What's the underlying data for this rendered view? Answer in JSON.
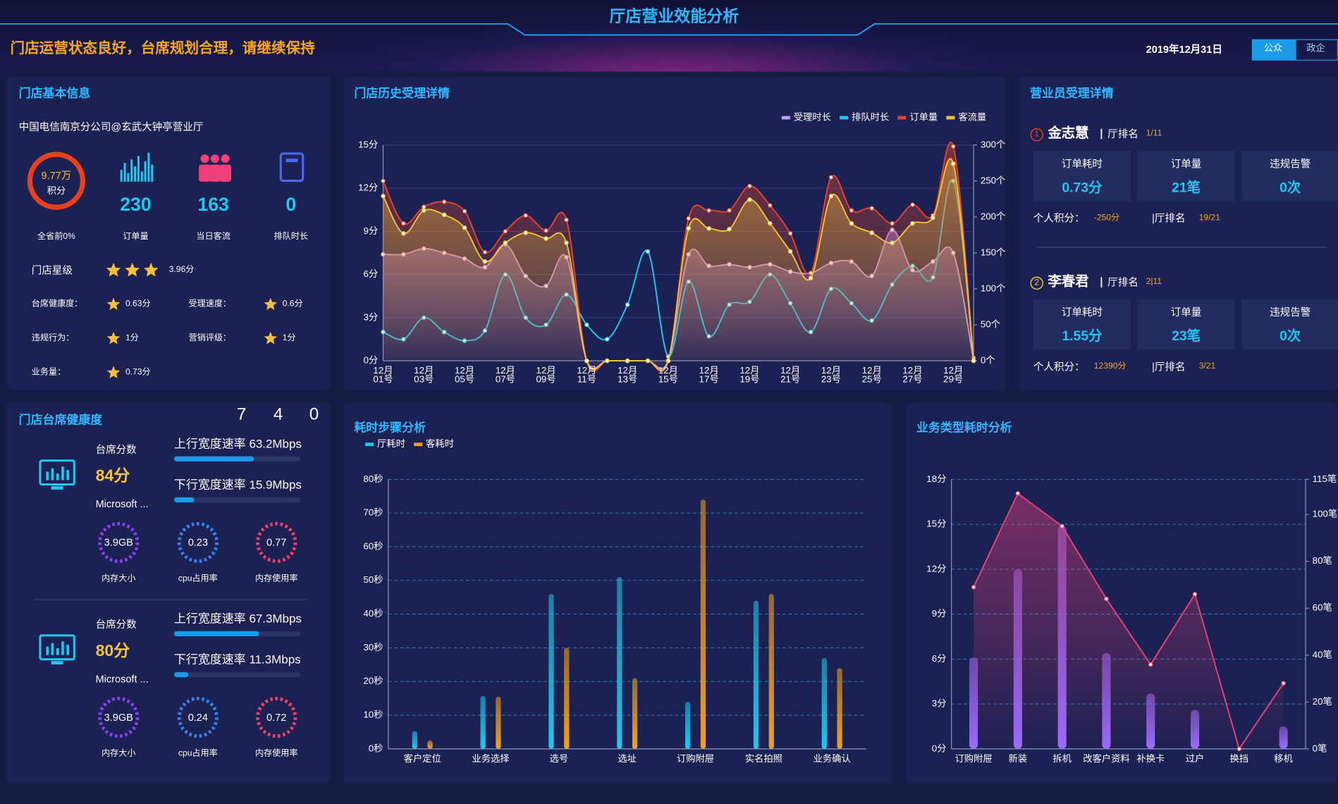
{
  "header": {
    "title": "厅店营业效能分析",
    "slogan": "门店运营状态良好，台席规划合理，请继续保持",
    "date": "2019年12月31日",
    "tabs": [
      "公众",
      "政企"
    ]
  },
  "store": {
    "title": "门店基本信息",
    "name": "中国电信南京分公司@玄武大钟亭营业厅",
    "score": "9.77万",
    "score_unit": "积分",
    "rank": "全省前0%",
    "stats": [
      {
        "value": 230,
        "label": "订单量"
      },
      {
        "value": 163,
        "label": "当日客流"
      },
      {
        "value": 0,
        "label": "排队时长"
      }
    ],
    "star_label": "门店星级",
    "star_score": "3.96分",
    "metrics": [
      {
        "label": "台席健康度：",
        "value": "0.63分"
      },
      {
        "label": "受理速度：",
        "value": "0.6分"
      },
      {
        "label": "违规行为：",
        "value": "1分"
      },
      {
        "label": "营销评级：",
        "value": "1分"
      },
      {
        "label": "业务量：",
        "value": "0.73分"
      }
    ]
  },
  "staff": {
    "title": "营业员受理详情",
    "members": [
      {
        "index": "1",
        "name": "金志慧",
        "rank_label": "厅排名",
        "rank": "1/11",
        "cards": [
          {
            "label": "订单耗时",
            "value": "0.73分"
          },
          {
            "label": "订单量",
            "value": "21笔"
          },
          {
            "label": "违规告警",
            "value": "0次"
          }
        ],
        "points_label": "个人积分：",
        "points": "-250分",
        "hall_rank_label": "|厅排名",
        "hall_rank": "19/21"
      },
      {
        "index": "2",
        "name": "李春君",
        "rank_label": "厅排名",
        "rank": "2|11",
        "cards": [
          {
            "label": "订单耗时",
            "value": "1.55分"
          },
          {
            "label": "订单量",
            "value": "23笔"
          },
          {
            "label": "违规告警",
            "value": "0次"
          }
        ],
        "points_label": "个人积分：",
        "points": "12390分",
        "hall_rank_label": "|厅排名",
        "hall_rank": "3/21"
      }
    ]
  },
  "health": {
    "title": "门店台席健康度",
    "digits": [
      "7",
      "4",
      "0"
    ],
    "terminals": [
      {
        "score_label": "台席分数",
        "score": "84分",
        "os": "Microsoft ...",
        "up": {
          "label": "上行宽度速率",
          "value": 63.2,
          "value_label": "63.2Mbps"
        },
        "down": {
          "label": "下行宽度速率",
          "value": 15.9,
          "value_label": "15.9Mbps"
        },
        "gauges": [
          {
            "value": "3.9GB",
            "label": "内存大小",
            "color": "#8b3ff0"
          },
          {
            "value": "0.23",
            "label": "cpu占用率",
            "color": "#3a7ff0"
          },
          {
            "value": "0.77",
            "label": "内存使用率",
            "color": "#f0406a"
          }
        ]
      },
      {
        "score_label": "台席分数",
        "score": "80分",
        "os": "Microsoft ...",
        "up": {
          "label": "上行宽度速率",
          "value": 67.3,
          "value_label": "67.3Mbps"
        },
        "down": {
          "label": "下行宽度速率",
          "value": 11.3,
          "value_label": "11.3Mbps"
        },
        "gauges": [
          {
            "value": "3.9GB",
            "label": "内存大小",
            "color": "#8b3ff0"
          },
          {
            "value": "0.24",
            "label": "cpu占用率",
            "color": "#3a7ff0"
          },
          {
            "value": "0.72",
            "label": "内存使用率",
            "color": "#f0406a"
          }
        ]
      }
    ]
  },
  "chart_data": [
    {
      "type": "line",
      "title": "门店历史受理详情",
      "smooth": true,
      "legend": "top-right",
      "grid": true,
      "categories": [
        "12月01号",
        null,
        "12月03号",
        null,
        "12月05号",
        null,
        "12月07号",
        null,
        "12月09号",
        null,
        "12月11号",
        null,
        "12月13号",
        null,
        "12月15号",
        null,
        "12月17号",
        null,
        "12月19号",
        null,
        "12月21号",
        null,
        "12月23号",
        null,
        "12月25号",
        null,
        "12月27号",
        null,
        "12月29号",
        null
      ],
      "series": [
        {
          "name": "受理时长",
          "color": "#c39bff",
          "area": true,
          "values": [
            7.4,
            7.4,
            7.8,
            7.5,
            7.1,
            6.5,
            8.1,
            5.9,
            5.2,
            7.2,
            0,
            0,
            0,
            0,
            0,
            7.4,
            6.6,
            6.7,
            6.5,
            6.7,
            6.2,
            6.1,
            6.8,
            6.9,
            5.9,
            9.1,
            6.3,
            6.9,
            7.5,
            0
          ]
        },
        {
          "name": "排队时长",
          "color": "#1ec8f0",
          "values": [
            2.0,
            1.5,
            3.0,
            2.0,
            1.4,
            2.1,
            6.0,
            3.0,
            2.5,
            4.6,
            2.5,
            1.5,
            3.9,
            7.6,
            0.3,
            5.5,
            1.7,
            3.9,
            4.1,
            6.0,
            4.0,
            2.0,
            5.0,
            4.0,
            2.8,
            5.3,
            6.6,
            5.8,
            12.5,
            0.2
          ]
        },
        {
          "name": "订单量",
          "color": "#e2452b",
          "axis": "y2",
          "area": true,
          "values": [
            250,
            191,
            214,
            221,
            208,
            151,
            180,
            202,
            181,
            196,
            0,
            0,
            0,
            0,
            0,
            198,
            209,
            209,
            243,
            216,
            177,
            122,
            255,
            209,
            212,
            191,
            217,
            202,
            298,
            4
          ]
        },
        {
          "name": "客流量",
          "color": "#f3c133",
          "axis": "y2",
          "area": true,
          "values": [
            229,
            177,
            209,
            203,
            185,
            138,
            164,
            178,
            170,
            164,
            0,
            0,
            0,
            0,
            0,
            184,
            184,
            183,
            224,
            191,
            152,
            115,
            229,
            191,
            178,
            164,
            191,
            199,
            274,
            0
          ]
        }
      ],
      "ylim": [
        0,
        15
      ],
      "yticks": [
        {
          "value": 0,
          "label": "0分"
        },
        {
          "value": 3,
          "label": "3分"
        },
        {
          "value": 6,
          "label": "6分"
        },
        {
          "value": 9,
          "label": "9分"
        },
        {
          "value": 12,
          "label": "12分"
        },
        {
          "value": 15,
          "label": "15分"
        }
      ],
      "y2lim": [
        0,
        300
      ],
      "y2ticks": [
        {
          "value": 0,
          "label": "0个"
        },
        {
          "value": 50,
          "label": "50个"
        },
        {
          "value": 100,
          "label": "100个"
        },
        {
          "value": 150,
          "label": "150个"
        },
        {
          "value": 200,
          "label": "200个"
        },
        {
          "value": 250,
          "label": "250个"
        },
        {
          "value": 300,
          "label": "300个"
        }
      ]
    },
    {
      "type": "bar",
      "title": "耗时步骤分析",
      "legend": "top-left",
      "grid": true,
      "categories": [
        "客户定位",
        "业务选择",
        "选号",
        "选址",
        "订购附屉",
        "实名拍照",
        "业务确认"
      ],
      "series": [
        {
          "name": "厅耗时",
          "color": "#1ec8f0",
          "values": [
            5.3,
            15.7,
            46,
            51,
            14,
            44,
            27
          ]
        },
        {
          "name": "客耗时",
          "color": "#f0a020",
          "values": [
            2.5,
            15.5,
            30,
            21,
            74,
            46,
            24
          ]
        }
      ],
      "ylim": [
        0,
        80
      ],
      "yticks": [
        {
          "value": 0,
          "label": "0秒"
        },
        {
          "value": 10,
          "label": "10秒"
        },
        {
          "value": 20,
          "label": "20秒"
        },
        {
          "value": 30,
          "label": "30秒"
        },
        {
          "value": 40,
          "label": "40秒"
        },
        {
          "value": 50,
          "label": "50秒"
        },
        {
          "value": 60,
          "label": "60秒"
        },
        {
          "value": 70,
          "label": "70秒"
        },
        {
          "value": 80,
          "label": "80秒"
        }
      ]
    },
    {
      "type": "combo",
      "title": "业务类型耗时分析",
      "grid": true,
      "categories": [
        "订购附屉",
        "新装",
        "拆机",
        "改客户资料",
        "补换卡",
        "过户",
        "换挡",
        "移机"
      ],
      "series": [
        {
          "type": "bar",
          "color": "#9b6bff",
          "values": [
            6.1,
            12.0,
            14.9,
            6.4,
            3.7,
            2.6,
            0,
            1.5
          ]
        },
        {
          "type": "line",
          "axis": "y2",
          "color": "#e8407a",
          "values": [
            69,
            109,
            95,
            64,
            36,
            66,
            0,
            28
          ]
        }
      ],
      "ylim": [
        0,
        18
      ],
      "yticks": [
        {
          "value": 0,
          "label": "0分"
        },
        {
          "value": 3,
          "label": "3分"
        },
        {
          "value": 6,
          "label": "6分"
        },
        {
          "value": 9,
          "label": "9分"
        },
        {
          "value": 12,
          "label": "12分"
        },
        {
          "value": 15,
          "label": "15分"
        },
        {
          "value": 18,
          "label": "18分"
        }
      ],
      "y2lim": [
        0,
        115
      ],
      "y2ticks": [
        {
          "value": 0,
          "label": "0笔"
        },
        {
          "value": 20,
          "label": "20笔"
        },
        {
          "value": 40,
          "label": "40笔"
        },
        {
          "value": 60,
          "label": "60笔"
        },
        {
          "value": 80,
          "label": "80笔"
        },
        {
          "value": 100,
          "label": "100笔"
        },
        {
          "value": 115,
          "label": "115笔"
        }
      ]
    }
  ]
}
